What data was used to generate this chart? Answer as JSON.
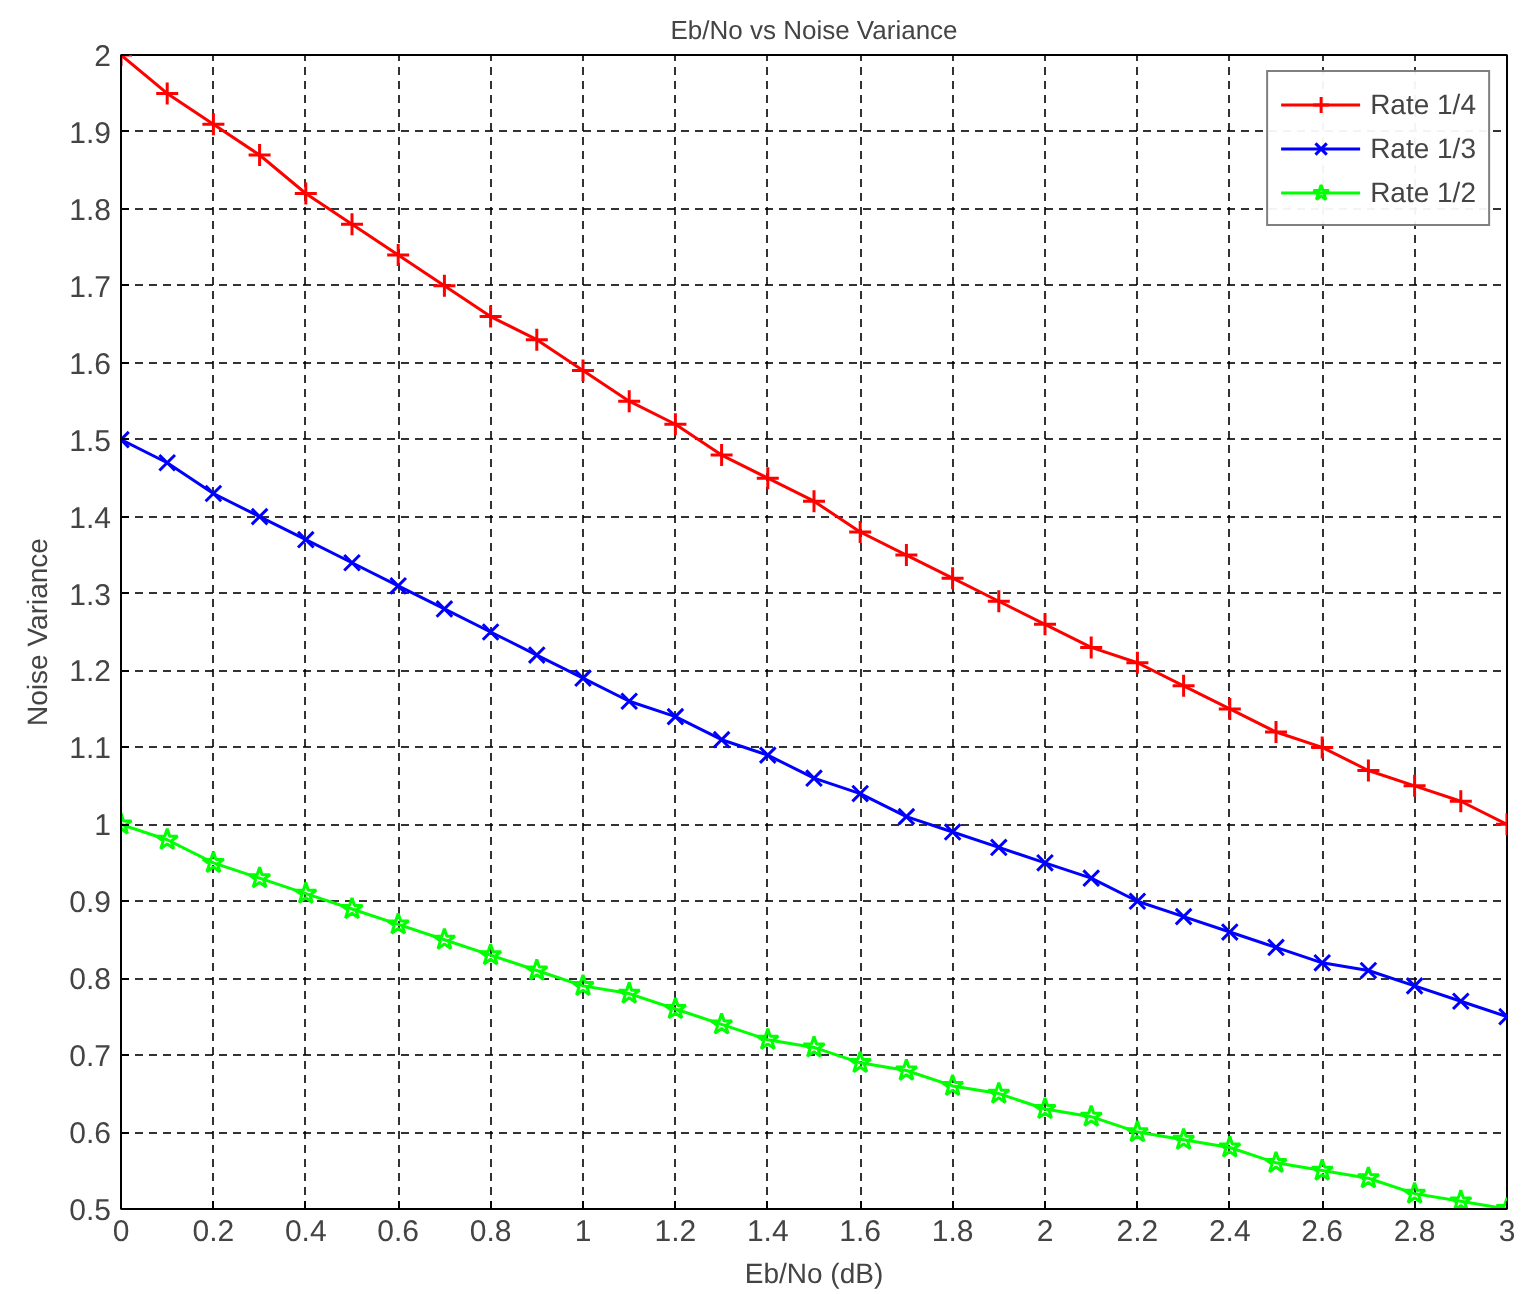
{
  "chart_data": {
    "type": "line",
    "title": "Eb/No vs Noise Variance",
    "xlabel": "Eb/No (dB)",
    "ylabel": "Noise Variance",
    "x": [
      0,
      0.1,
      0.2,
      0.3,
      0.4,
      0.5,
      0.6,
      0.7,
      0.8,
      0.9,
      1.0,
      1.1,
      1.2,
      1.3,
      1.4,
      1.5,
      1.6,
      1.7,
      1.8,
      1.9,
      2.0,
      2.1,
      2.2,
      2.3,
      2.4,
      2.5,
      2.6,
      2.7,
      2.8,
      2.9,
      3.0
    ],
    "series": [
      {
        "name": "Rate 1/4",
        "color": "#ff0000",
        "marker": "cross",
        "values": [
          2,
          1.95,
          1.91,
          1.87,
          1.82,
          1.78,
          1.74,
          1.7,
          1.66,
          1.63,
          1.59,
          1.55,
          1.52,
          1.48,
          1.45,
          1.42,
          1.38,
          1.35,
          1.32,
          1.29,
          1.26,
          1.23,
          1.21,
          1.18,
          1.15,
          1.12,
          1.1,
          1.07,
          1.05,
          1.03,
          1.0
        ]
      },
      {
        "name": "Rate 1/3",
        "color": "#0000ff",
        "marker": "x",
        "values": [
          1.5,
          1.47,
          1.43,
          1.4,
          1.37,
          1.34,
          1.31,
          1.28,
          1.25,
          1.22,
          1.19,
          1.16,
          1.14,
          1.11,
          1.09,
          1.06,
          1.04,
          1.01,
          0.99,
          0.97,
          0.95,
          0.93,
          0.9,
          0.88,
          0.86,
          0.84,
          0.82,
          0.81,
          0.79,
          0.77,
          0.75
        ]
      },
      {
        "name": "Rate 1/2",
        "color": "#00ff00",
        "marker": "star",
        "values": [
          1,
          0.98,
          0.95,
          0.93,
          0.91,
          0.89,
          0.87,
          0.85,
          0.83,
          0.81,
          0.79,
          0.78,
          0.76,
          0.74,
          0.72,
          0.71,
          0.69,
          0.68,
          0.66,
          0.65,
          0.63,
          0.62,
          0.6,
          0.59,
          0.58,
          0.56,
          0.55,
          0.54,
          0.52,
          0.51,
          0.5
        ]
      }
    ],
    "xlim": [
      0,
      3
    ],
    "ylim": [
      0.5,
      2
    ],
    "xticks": [
      0,
      0.2,
      0.4,
      0.6,
      0.8,
      1,
      1.2,
      1.4,
      1.6,
      1.8,
      2,
      2.2,
      2.4,
      2.6,
      2.8,
      3
    ],
    "yticks": [
      0.5,
      0.6,
      0.7,
      0.8,
      0.9,
      1,
      1.1,
      1.2,
      1.3,
      1.4,
      1.5,
      1.6,
      1.7,
      1.8,
      1.9,
      2
    ],
    "grid": true,
    "legend": "top right",
    "line_style": "solid"
  }
}
